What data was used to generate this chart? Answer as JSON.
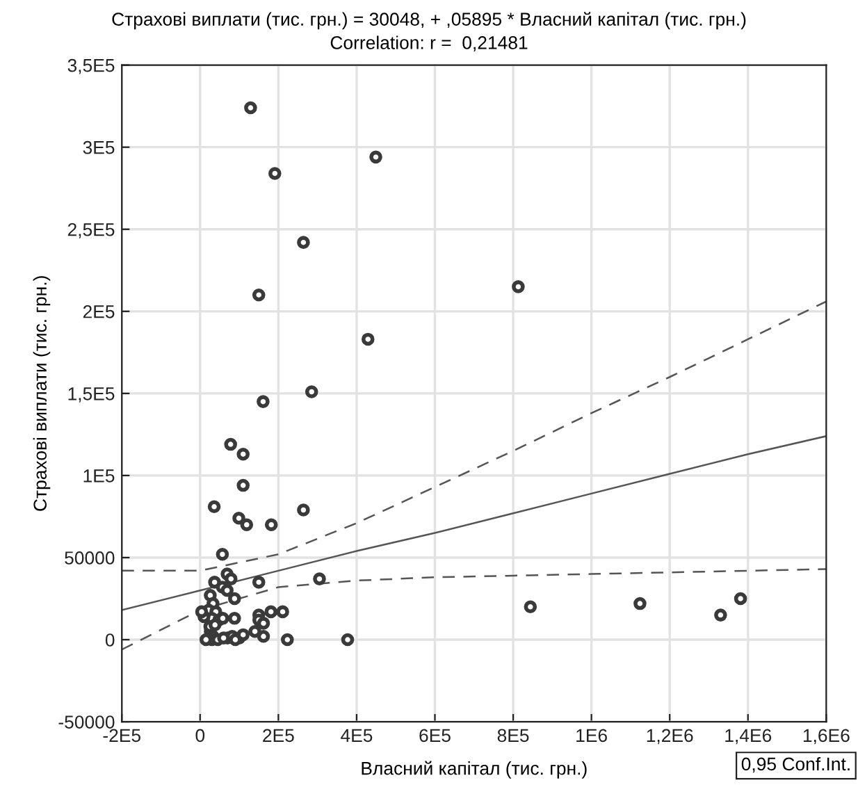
{
  "chart_data": {
    "type": "scatter",
    "title": "Страхові виплати (тис. грн.) = 30048, + ,05895 * Власний капітал (тис. грн.)",
    "subtitle": "Correlation: r =  0,21481",
    "xlabel": "Власний капітал (тис. грн.)",
    "ylabel": "Страхові виплати (тис. грн.)",
    "annotations": [
      "0,95 Conf.Int."
    ],
    "xlim": [
      -200000,
      1600000
    ],
    "ylim": [
      -50000,
      350000
    ],
    "xticks": [
      {
        "value": -200000,
        "label": "-2E5"
      },
      0,
      {
        "value": 200000,
        "label": "2E5"
      },
      {
        "value": 400000,
        "label": "4E5"
      },
      {
        "value": 600000,
        "label": "6E5"
      },
      {
        "value": 800000,
        "label": "8E5"
      },
      {
        "value": 1000000,
        "label": "1E6"
      },
      {
        "value": 1200000,
        "label": "1,2E6"
      },
      {
        "value": 1400000,
        "label": "1,4E6"
      },
      {
        "value": 1600000,
        "label": "1,6E6"
      }
    ],
    "yticks": [
      {
        "value": -50000,
        "label": "-50000"
      },
      0,
      50000,
      {
        "value": 100000,
        "label": "1E5"
      },
      {
        "value": 150000,
        "label": "1,5E5"
      },
      {
        "value": 200000,
        "label": "2E5"
      },
      {
        "value": 250000,
        "label": "2,5E5"
      },
      {
        "value": 300000,
        "label": "3E5"
      },
      {
        "value": 350000,
        "label": "3,5E5"
      }
    ],
    "grid": true,
    "series": [
      {
        "color": "#3a3a3a",
        "marker": "circle",
        "x": [
          129000,
          191000,
          449000,
          264000,
          813000,
          150000,
          429000,
          285000,
          161000,
          78000,
          110000,
          110000,
          36000,
          99000,
          119000,
          182000,
          264000,
          57000,
          69000,
          79000,
          37000,
          150000,
          305000,
          57000,
          69000,
          88000,
          88000,
          150000,
          150000,
          162000,
          140000,
          162000,
          181000,
          211000,
          223000,
          377000,
          844000,
          1124000,
          1330000,
          1381000,
          26000,
          33000,
          22000,
          40000,
          30000,
          48000,
          10000,
          58000,
          26000,
          33000,
          30000,
          45000,
          15000,
          70000,
          82000,
          100000,
          110000,
          90000,
          60000,
          25000,
          38000,
          4000
        ],
        "values": [
          324000,
          284000,
          294000,
          242000,
          215000,
          210000,
          183000,
          151000,
          145000,
          119000,
          113000,
          94000,
          81000,
          74000,
          70000,
          70000,
          79000,
          52000,
          40000,
          37000,
          35000,
          35000,
          37000,
          32000,
          30000,
          25000,
          13000,
          15000,
          12000,
          10000,
          5000,
          2000,
          17000,
          17000,
          0,
          0,
          20000,
          22000,
          15000,
          25000,
          27000,
          22000,
          18000,
          17000,
          13000,
          12000,
          14000,
          13000,
          5000,
          2000,
          0,
          0,
          0,
          1000,
          2000,
          1000,
          3000,
          0,
          1000,
          8000,
          9000,
          17000
        ]
      },
      {
        "type": "line",
        "color": "#555555",
        "line_style": "solid",
        "x": [
          -200000,
          0,
          200000,
          400000,
          600000,
          800000,
          1000000,
          1200000,
          1400000,
          1600000
        ],
        "values": [
          18000,
          30000,
          42000,
          54000,
          65000,
          77000,
          89000,
          101000,
          113000,
          124000
        ]
      },
      {
        "type": "line",
        "color": "#555555",
        "line_style": "dashed",
        "x": [
          -200000,
          0,
          200000,
          400000,
          600000,
          800000,
          1000000,
          1200000,
          1400000,
          1600000
        ],
        "values": [
          42000,
          42000,
          52000,
          71000,
          93000,
          115000,
          138000,
          160000,
          183000,
          206000
        ]
      },
      {
        "type": "line",
        "color": "#555555",
        "line_style": "dashed",
        "x": [
          -200000,
          0,
          200000,
          400000,
          600000,
          800000,
          1000000,
          1200000,
          1400000,
          1600000
        ],
        "values": [
          -6000,
          18000,
          32000,
          36000,
          38000,
          39000,
          40000,
          41000,
          42000,
          43000
        ]
      }
    ]
  }
}
